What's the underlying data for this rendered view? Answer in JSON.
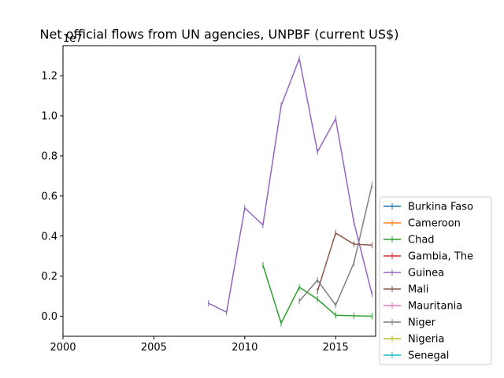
{
  "chart_data": {
    "type": "line",
    "title": "Net official flows from UN agencies, UNPBF (current US$)",
    "xlabel": "",
    "ylabel": "",
    "offset_text": "1e7",
    "xlim": [
      2000,
      2017.2
    ],
    "ylim": [
      -1000000,
      13500000
    ],
    "xticks": [
      2000,
      2005,
      2010,
      2015
    ],
    "yticks": [
      0,
      2000000,
      4000000,
      6000000,
      8000000,
      10000000,
      12000000
    ],
    "ytick_labels": [
      "0.0",
      "0.2",
      "0.4",
      "0.6",
      "0.8",
      "1.0",
      "1.2"
    ],
    "grid": false,
    "legend_position": "lower-right-outside",
    "series": [
      {
        "name": "Burkina Faso",
        "color": "#1f77b4",
        "x": [],
        "y": []
      },
      {
        "name": "Cameroon",
        "color": "#ff7f0e",
        "x": [],
        "y": []
      },
      {
        "name": "Chad",
        "color": "#2ca02c",
        "x": [
          2011,
          2012,
          2013,
          2014,
          2015,
          2016,
          2017
        ],
        "y": [
          2550000,
          -350000,
          1450000,
          850000,
          50000,
          20000,
          0
        ]
      },
      {
        "name": "Gambia, The",
        "color": "#d62728",
        "x": [],
        "y": []
      },
      {
        "name": "Guinea",
        "color": "#9467bd",
        "x": [
          2008,
          2009,
          2010,
          2011,
          2012,
          2013,
          2014,
          2015,
          2016,
          2017
        ],
        "y": [
          650000,
          200000,
          5400000,
          4550000,
          10500000,
          12850000,
          8200000,
          9850000,
          4700000,
          1100000
        ]
      },
      {
        "name": "Mali",
        "color": "#8c564b",
        "x": [
          2014,
          2015,
          2016,
          2017
        ],
        "y": [
          1250000,
          4150000,
          3600000,
          3550000
        ]
      },
      {
        "name": "Mauritania",
        "color": "#e377c2",
        "x": [],
        "y": []
      },
      {
        "name": "Niger",
        "color": "#7f7f7f",
        "x": [
          2013,
          2014,
          2015,
          2016,
          2017
        ],
        "y": [
          750000,
          1800000,
          550000,
          2650000,
          6550000
        ]
      },
      {
        "name": "Nigeria",
        "color": "#bcbd22",
        "x": [],
        "y": []
      },
      {
        "name": "Senegal",
        "color": "#17becf",
        "x": [],
        "y": []
      }
    ]
  }
}
